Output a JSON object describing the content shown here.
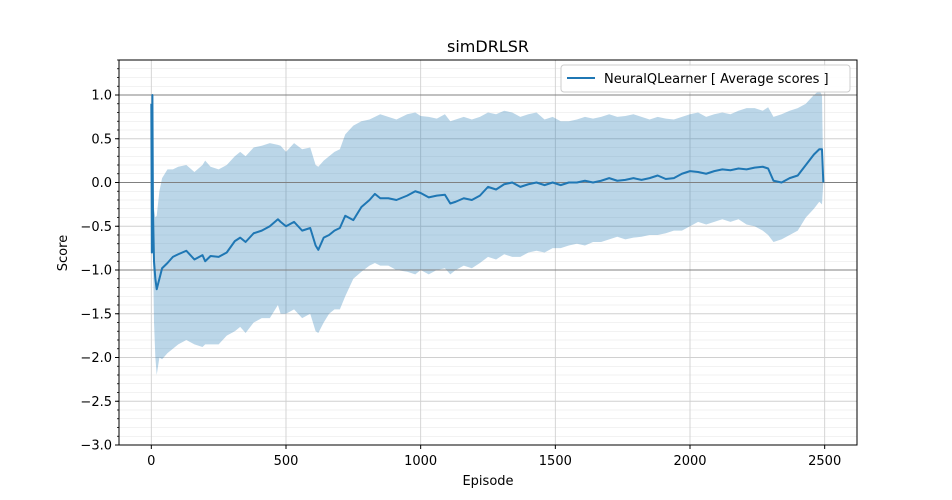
{
  "chart_data": {
    "type": "line",
    "title": "simDRLSR",
    "xlabel": "Episode",
    "ylabel": "Score",
    "xlim": [
      -120,
      2620
    ],
    "ylim": [
      -3.0,
      1.4
    ],
    "xticks": [
      0,
      500,
      1000,
      1500,
      2000,
      2500
    ],
    "xtick_labels": [
      "0",
      "500",
      "1000",
      "1500",
      "2000",
      "2500"
    ],
    "yticks": [
      -3.0,
      -2.5,
      -2.0,
      -1.5,
      -1.0,
      -0.5,
      0.0,
      0.5,
      1.0
    ],
    "ytick_labels": [
      "−3.0",
      "−2.5",
      "−2.0",
      "−1.5",
      "−1.0",
      "−0.5",
      "0.0",
      "0.5",
      "1.0"
    ],
    "hlines": [
      1.0,
      0.0,
      -1.0
    ],
    "grid": true,
    "legend_position": "top-right",
    "series": [
      {
        "name": "NeuralQLearner [ Average scores ]",
        "color": "#1f77b4",
        "band_color": "#1f77b4",
        "x": [
          0,
          2,
          4,
          6,
          10,
          15,
          20,
          30,
          40,
          60,
          80,
          100,
          130,
          160,
          190,
          200,
          220,
          250,
          280,
          310,
          330,
          350,
          380,
          410,
          440,
          470,
          480,
          500,
          530,
          560,
          590,
          610,
          620,
          640,
          660,
          680,
          700,
          720,
          750,
          780,
          810,
          830,
          850,
          880,
          910,
          950,
          980,
          1000,
          1030,
          1060,
          1090,
          1110,
          1130,
          1160,
          1190,
          1220,
          1250,
          1280,
          1310,
          1340,
          1370,
          1400,
          1430,
          1460,
          1490,
          1520,
          1550,
          1580,
          1610,
          1640,
          1670,
          1700,
          1730,
          1760,
          1790,
          1820,
          1850,
          1880,
          1910,
          1940,
          1970,
          2000,
          2030,
          2060,
          2090,
          2120,
          2150,
          2180,
          2210,
          2240,
          2270,
          2290,
          2310,
          2340,
          2370,
          2400,
          2430,
          2460,
          2480,
          2490,
          2495
        ],
        "mean": [
          0.9,
          -0.8,
          1.0,
          -0.3,
          -0.9,
          -1.1,
          -1.22,
          -1.1,
          -0.98,
          -0.92,
          -0.85,
          -0.82,
          -0.78,
          -0.88,
          -0.83,
          -0.9,
          -0.84,
          -0.85,
          -0.8,
          -0.67,
          -0.63,
          -0.68,
          -0.58,
          -0.55,
          -0.5,
          -0.42,
          -0.45,
          -0.5,
          -0.45,
          -0.55,
          -0.52,
          -0.72,
          -0.77,
          -0.63,
          -0.6,
          -0.55,
          -0.52,
          -0.38,
          -0.43,
          -0.28,
          -0.2,
          -0.13,
          -0.18,
          -0.18,
          -0.2,
          -0.15,
          -0.1,
          -0.12,
          -0.17,
          -0.15,
          -0.14,
          -0.24,
          -0.22,
          -0.18,
          -0.2,
          -0.15,
          -0.05,
          -0.08,
          -0.02,
          0.0,
          -0.05,
          -0.02,
          0.0,
          -0.03,
          0.0,
          -0.03,
          0.0,
          0.0,
          0.02,
          0.0,
          0.02,
          0.05,
          0.02,
          0.03,
          0.05,
          0.03,
          0.05,
          0.08,
          0.04,
          0.05,
          0.1,
          0.13,
          0.12,
          0.1,
          0.13,
          0.15,
          0.14,
          0.16,
          0.15,
          0.17,
          0.18,
          0.16,
          0.02,
          0.0,
          0.05,
          0.08,
          0.2,
          0.32,
          0.38,
          0.38,
          0.0
        ],
        "upper": [
          0.92,
          0.3,
          1.02,
          0.2,
          -0.3,
          -0.4,
          -0.38,
          -0.1,
          0.05,
          0.15,
          0.15,
          0.18,
          0.2,
          0.12,
          0.2,
          0.25,
          0.18,
          0.15,
          0.2,
          0.3,
          0.35,
          0.3,
          0.4,
          0.42,
          0.45,
          0.43,
          0.42,
          0.35,
          0.45,
          0.38,
          0.4,
          0.2,
          0.18,
          0.25,
          0.3,
          0.35,
          0.38,
          0.55,
          0.65,
          0.7,
          0.72,
          0.75,
          0.78,
          0.75,
          0.72,
          0.78,
          0.8,
          0.76,
          0.75,
          0.73,
          0.78,
          0.7,
          0.72,
          0.75,
          0.72,
          0.75,
          0.8,
          0.78,
          0.82,
          0.8,
          0.75,
          0.78,
          0.8,
          0.72,
          0.75,
          0.7,
          0.7,
          0.72,
          0.75,
          0.73,
          0.75,
          0.78,
          0.75,
          0.76,
          0.78,
          0.75,
          0.72,
          0.75,
          0.73,
          0.72,
          0.75,
          0.78,
          0.8,
          0.75,
          0.78,
          0.8,
          0.78,
          0.82,
          0.85,
          0.85,
          0.82,
          0.86,
          0.75,
          0.78,
          0.82,
          0.85,
          0.9,
          1.0,
          1.05,
          1.0,
          0.0
        ],
        "lower": [
          0.88,
          -1.0,
          0.98,
          -0.8,
          -1.6,
          -2.0,
          -2.2,
          -2.0,
          -2.02,
          -1.95,
          -1.9,
          -1.85,
          -1.8,
          -1.85,
          -1.88,
          -1.85,
          -1.85,
          -1.85,
          -1.75,
          -1.7,
          -1.65,
          -1.72,
          -1.6,
          -1.55,
          -1.55,
          -1.4,
          -1.5,
          -1.5,
          -1.45,
          -1.55,
          -1.5,
          -1.7,
          -1.72,
          -1.6,
          -1.5,
          -1.45,
          -1.45,
          -1.3,
          -1.1,
          -1.02,
          -0.95,
          -0.92,
          -0.95,
          -0.95,
          -1.0,
          -1.02,
          -1.05,
          -1.0,
          -1.05,
          -1.0,
          -0.98,
          -1.05,
          -1.0,
          -0.95,
          -0.98,
          -0.92,
          -0.85,
          -0.88,
          -0.82,
          -0.85,
          -0.85,
          -0.8,
          -0.78,
          -0.8,
          -0.75,
          -0.75,
          -0.72,
          -0.7,
          -0.72,
          -0.68,
          -0.68,
          -0.65,
          -0.62,
          -0.65,
          -0.63,
          -0.62,
          -0.6,
          -0.6,
          -0.58,
          -0.55,
          -0.55,
          -0.5,
          -0.45,
          -0.48,
          -0.45,
          -0.42,
          -0.45,
          -0.42,
          -0.48,
          -0.5,
          -0.55,
          -0.6,
          -0.68,
          -0.65,
          -0.6,
          -0.55,
          -0.4,
          -0.3,
          -0.22,
          -0.25,
          0.0
        ]
      }
    ]
  }
}
